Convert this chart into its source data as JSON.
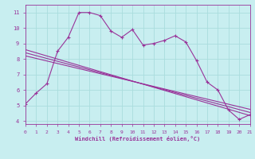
{
  "xlabel": "Windchill (Refroidissement éolien,°C)",
  "ylabel": "",
  "xlim": [
    0,
    21
  ],
  "ylim": [
    3.8,
    11.5
  ],
  "yticks": [
    4,
    5,
    6,
    7,
    8,
    9,
    10,
    11
  ],
  "xticks": [
    0,
    1,
    2,
    3,
    4,
    5,
    6,
    7,
    8,
    9,
    10,
    11,
    12,
    13,
    14,
    15,
    16,
    17,
    18,
    19,
    20,
    21
  ],
  "bg_color": "#c8eef0",
  "line_color": "#993399",
  "grid_color": "#aadddd",
  "series1_x": [
    0,
    1,
    2,
    3,
    4,
    5,
    6,
    7,
    8,
    9,
    10,
    11,
    12,
    13,
    14,
    15,
    16,
    17,
    18,
    19,
    20,
    21
  ],
  "series1_y": [
    5.1,
    5.8,
    6.4,
    8.5,
    9.4,
    11.0,
    11.0,
    10.8,
    9.8,
    9.4,
    9.9,
    8.9,
    9.0,
    9.2,
    9.5,
    9.1,
    7.9,
    6.5,
    6.0,
    4.7,
    4.1,
    4.4
  ],
  "series2_x": [
    0,
    21
  ],
  "series2_y": [
    8.6,
    4.35
  ],
  "series3_x": [
    0,
    21
  ],
  "series3_y": [
    8.4,
    4.55
  ],
  "series4_x": [
    0,
    21
  ],
  "series4_y": [
    8.2,
    4.75
  ]
}
